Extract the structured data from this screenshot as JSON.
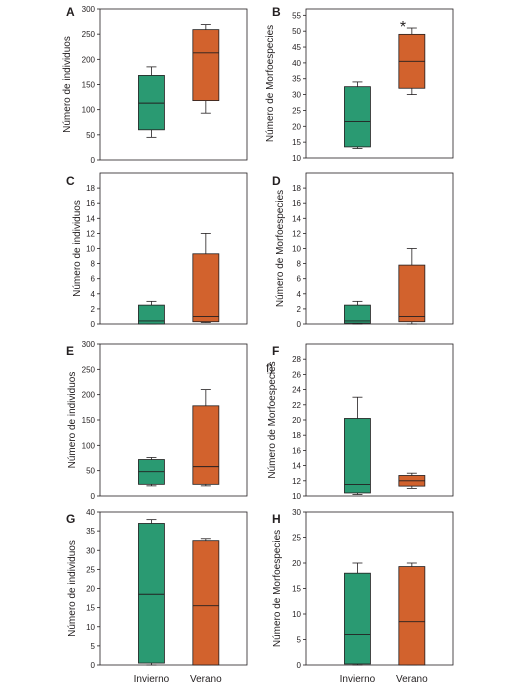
{
  "figure": {
    "colors": {
      "invierno": "#2a9a72",
      "verano": "#d2622d",
      "frame": "#231f20"
    }
  },
  "chart_data": [
    {
      "panel": "A",
      "type": "boxplot",
      "ylabel": "Número de individuos",
      "ylim": [
        0,
        300
      ],
      "yticks": [
        0,
        50,
        100,
        150,
        200,
        250,
        300
      ],
      "categories": [
        "Invierno",
        "Verano"
      ],
      "boxes": [
        {
          "category": "Invierno",
          "min": 45,
          "q1": 60,
          "median": 113,
          "q3": 168,
          "max": 185
        },
        {
          "category": "Verano",
          "min": 93,
          "q1": 118,
          "median": 213,
          "q3": 259,
          "max": 269
        }
      ],
      "annotation": ""
    },
    {
      "panel": "B",
      "type": "boxplot",
      "ylabel": "Número de Morfoespecies",
      "ylim": [
        10,
        57
      ],
      "yticks": [
        10,
        15,
        20,
        25,
        30,
        35,
        40,
        45,
        50,
        55
      ],
      "categories": [
        "Invierno",
        "Verano"
      ],
      "boxes": [
        {
          "category": "Invierno",
          "min": 13,
          "q1": 13.5,
          "median": 21.5,
          "q3": 32.5,
          "max": 34
        },
        {
          "category": "Verano",
          "min": 30,
          "q1": 32,
          "median": 40.5,
          "q3": 49,
          "max": 51
        }
      ],
      "annotation": "*"
    },
    {
      "panel": "C",
      "type": "boxplot",
      "ylabel": "Número de individuos",
      "ylim": [
        0,
        20
      ],
      "yticks": [
        0,
        2,
        4,
        6,
        8,
        10,
        12,
        14,
        16,
        18
      ],
      "categories": [
        "Invierno",
        "Verano"
      ],
      "boxes": [
        {
          "category": "Invierno",
          "min": 0,
          "q1": 0,
          "median": 0.4,
          "q3": 2.5,
          "max": 3
        },
        {
          "category": "Verano",
          "min": 0.2,
          "q1": 0.3,
          "median": 1,
          "q3": 9.3,
          "max": 12
        }
      ],
      "annotation": ""
    },
    {
      "panel": "D",
      "type": "boxplot",
      "ylabel": "Número de Morfoespecies",
      "ylim": [
        0,
        20
      ],
      "yticks": [
        0,
        2,
        4,
        6,
        8,
        10,
        12,
        14,
        16,
        18
      ],
      "categories": [
        "Invierno",
        "Verano"
      ],
      "boxes": [
        {
          "category": "Invierno",
          "min": 0,
          "q1": 0.1,
          "median": 0.4,
          "q3": 2.5,
          "max": 3
        },
        {
          "category": "Verano",
          "min": 0,
          "q1": 0.3,
          "median": 1,
          "q3": 7.8,
          "max": 10
        }
      ],
      "annotation": ""
    },
    {
      "panel": "E",
      "type": "boxplot",
      "ylabel": "Número de individuos",
      "ylim": [
        0,
        300
      ],
      "yticks": [
        0,
        50,
        100,
        150,
        200,
        250,
        300
      ],
      "categories": [
        "Invierno",
        "Verano"
      ],
      "boxes": [
        {
          "category": "Invierno",
          "min": 20,
          "q1": 23,
          "median": 48,
          "q3": 72,
          "max": 76
        },
        {
          "category": "Verano",
          "min": 20,
          "q1": 23,
          "median": 58,
          "q3": 178,
          "max": 210
        }
      ],
      "annotation": ""
    },
    {
      "panel": "F",
      "subpanel_label": "f)",
      "type": "boxplot",
      "ylabel": "Número de Morfoespecies",
      "ylim": [
        10,
        30
      ],
      "yticks": [
        10,
        12,
        14,
        16,
        18,
        20,
        22,
        24,
        26,
        28
      ],
      "categories": [
        "Invierno",
        "Verano"
      ],
      "boxes": [
        {
          "category": "Invierno",
          "min": 10.2,
          "q1": 10.4,
          "median": 11.5,
          "q3": 20.2,
          "max": 23
        },
        {
          "category": "Verano",
          "min": 11,
          "q1": 11.3,
          "median": 12,
          "q3": 12.7,
          "max": 13
        }
      ],
      "annotation": ""
    },
    {
      "panel": "G",
      "type": "boxplot",
      "ylabel": "Número de individuos",
      "ylim": [
        0,
        40
      ],
      "yticks": [
        0,
        5,
        10,
        15,
        20,
        25,
        30,
        35,
        40
      ],
      "categories": [
        "Invierno",
        "Verano"
      ],
      "boxes": [
        {
          "category": "Invierno",
          "min": 0,
          "q1": 0.5,
          "median": 18.5,
          "q3": 37,
          "max": 38
        },
        {
          "category": "Verano",
          "min": 0,
          "q1": 0,
          "median": 15.5,
          "q3": 32.5,
          "max": 33
        }
      ],
      "annotation": ""
    },
    {
      "panel": "H",
      "type": "boxplot",
      "ylabel": "Número de Morfoespecies",
      "ylim": [
        0,
        30
      ],
      "yticks": [
        0,
        5,
        10,
        15,
        20,
        25,
        30
      ],
      "categories": [
        "Invierno",
        "Verano"
      ],
      "boxes": [
        {
          "category": "Invierno",
          "min": 0,
          "q1": 0.2,
          "median": 6,
          "q3": 18,
          "max": 20
        },
        {
          "category": "Verano",
          "min": 0,
          "q1": 0,
          "median": 8.5,
          "q3": 19.3,
          "max": 20
        }
      ],
      "annotation": ""
    }
  ]
}
